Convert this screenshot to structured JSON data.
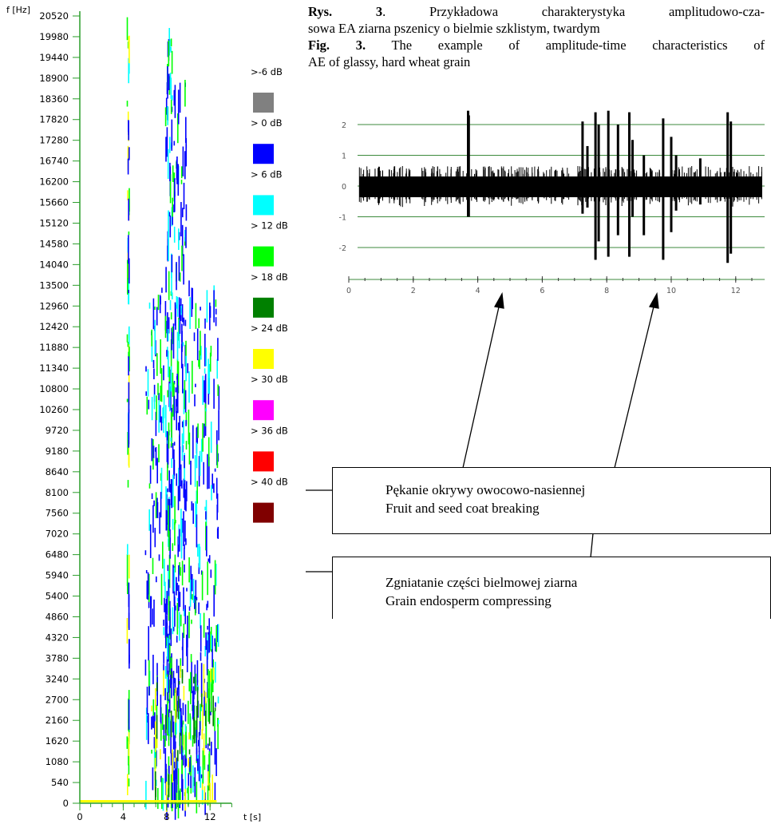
{
  "caption": {
    "pl": {
      "label": "Rys. 3",
      "lines": [
        ". Przykładowa charakterystyka amplitudowo-cza-",
        "sowa EA ziarna pszenicy o bielmie szklistym, twardym"
      ]
    },
    "en": {
      "label": "Fig. 3.",
      "lines": [
        " The example of amplitude-time characteristics of",
        "AE of glassy, hard wheat grain"
      ]
    }
  },
  "spectrogram": {
    "y_axis_label": "f [Hz]",
    "x_axis_label": "t [s]",
    "ylim": [
      0,
      20520
    ],
    "yticks": [
      0,
      540,
      1080,
      1620,
      2160,
      2700,
      3240,
      3780,
      4320,
      4860,
      5400,
      5940,
      6480,
      7020,
      7560,
      8100,
      8640,
      9180,
      9720,
      10260,
      10800,
      11340,
      11880,
      12420,
      12960,
      13500,
      14040,
      14580,
      15120,
      15660,
      16200,
      16740,
      17280,
      17820,
      18360,
      18900,
      19440,
      19980,
      20520
    ],
    "xlim": [
      0,
      14
    ],
    "xticks": [
      0,
      4,
      8,
      12
    ],
    "legend": [
      {
        "label": ">-6 dB",
        "color": "#808080"
      },
      {
        "label": "> 0 dB",
        "color": "#0000ff"
      },
      {
        "label": "> 6 dB",
        "color": "#00ffff"
      },
      {
        "label": "> 12 dB",
        "color": "#00ff00"
      },
      {
        "label": "> 18 dB",
        "color": "#008000"
      },
      {
        "label": "> 24 dB",
        "color": "#ffff00"
      },
      {
        "label": "> 30 dB",
        "color": "#ff00ff"
      },
      {
        "label": "> 36 dB",
        "color": "#ff0000"
      },
      {
        "label": "> 40 dB",
        "color": "#800000"
      }
    ]
  },
  "waveform": {
    "ylim": [
      -2.5,
      2.5
    ],
    "yticks": [
      2,
      1,
      0,
      -1,
      -2
    ],
    "xlim": [
      0,
      12.9
    ],
    "xticks": [
      0,
      2,
      4,
      6,
      8,
      10,
      12
    ]
  },
  "callouts": [
    {
      "lines": [
        "Pękanie okrywy owocowo-nasiennej",
        "Fruit and seed coat breaking"
      ]
    },
    {
      "lines": [
        "Zgniatanie części bielmowej ziarna",
        "Grain endosperm compressing"
      ]
    }
  ]
}
